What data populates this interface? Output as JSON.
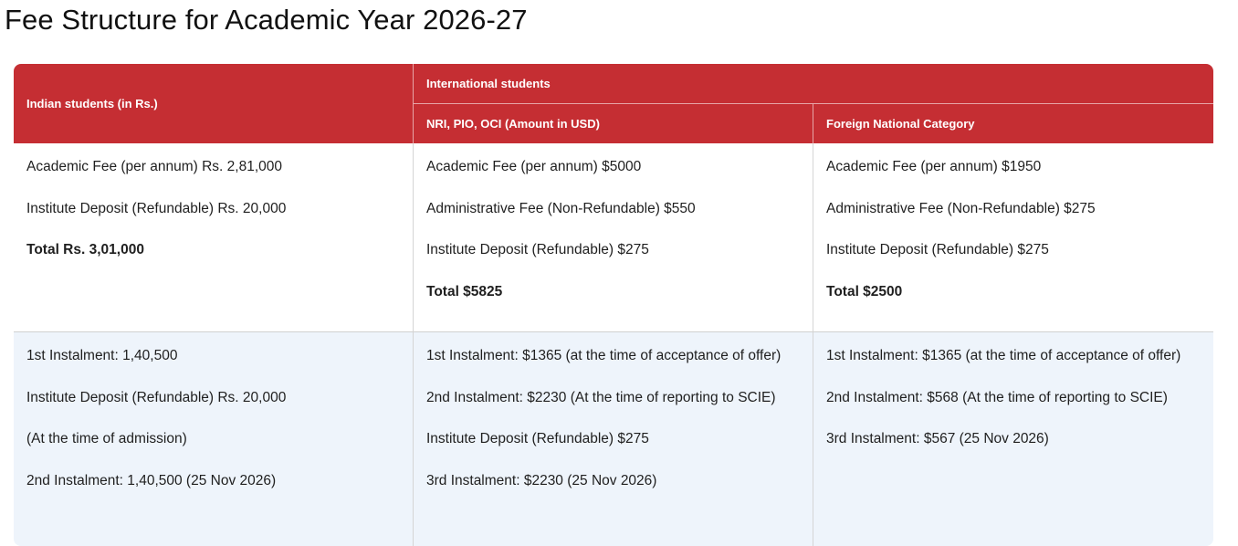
{
  "page": {
    "title": "Fee Structure for Academic Year 2026-27"
  },
  "table": {
    "headers": {
      "indian": "Indian students (in Rs.)",
      "international": "International students",
      "nri": "NRI, PIO, OCI (Amount in USD)",
      "foreign": "Foreign National Category"
    },
    "summary": {
      "indian": {
        "lines": [
          "Academic Fee (per annum) Rs. 2,81,000",
          "Institute Deposit (Refundable) Rs. 20,000"
        ],
        "total": "Total Rs. 3,01,000"
      },
      "nri": {
        "lines": [
          "Academic Fee (per annum) $5000",
          "Administrative Fee (Non-Refundable) $550",
          "Institute Deposit (Refundable) $275"
        ],
        "total": "Total $5825"
      },
      "foreign": {
        "lines": [
          "Academic Fee (per annum) $1950",
          "Administrative Fee (Non-Refundable) $275",
          "Institute Deposit (Refundable) $275"
        ],
        "total": "Total $2500"
      }
    },
    "instalments": {
      "indian": [
        "1st Instalment: 1,40,500",
        "Institute Deposit (Refundable) Rs. 20,000",
        "(At the time of admission)",
        "2nd Instalment: 1,40,500 (25 Nov 2026)"
      ],
      "nri": [
        "1st Instalment: $1365 (at the time of acceptance of offer)",
        "2nd Instalment: $2230 (At the time of reporting to SCIE)",
        "Institute Deposit (Refundable) $275",
        "3rd Instalment: $2230 (25 Nov 2026)"
      ],
      "foreign": [
        "1st Instalment: $1365 (at the time of acceptance of offer)",
        "2nd Instalment: $568 (At the time of reporting to SCIE)",
        "3rd Instalment: $567 (25 Nov 2026)"
      ]
    }
  },
  "colors": {
    "header_bg": "#c52e33",
    "header_text": "#ffffff",
    "instalment_row_bg": "#eef4fb"
  }
}
